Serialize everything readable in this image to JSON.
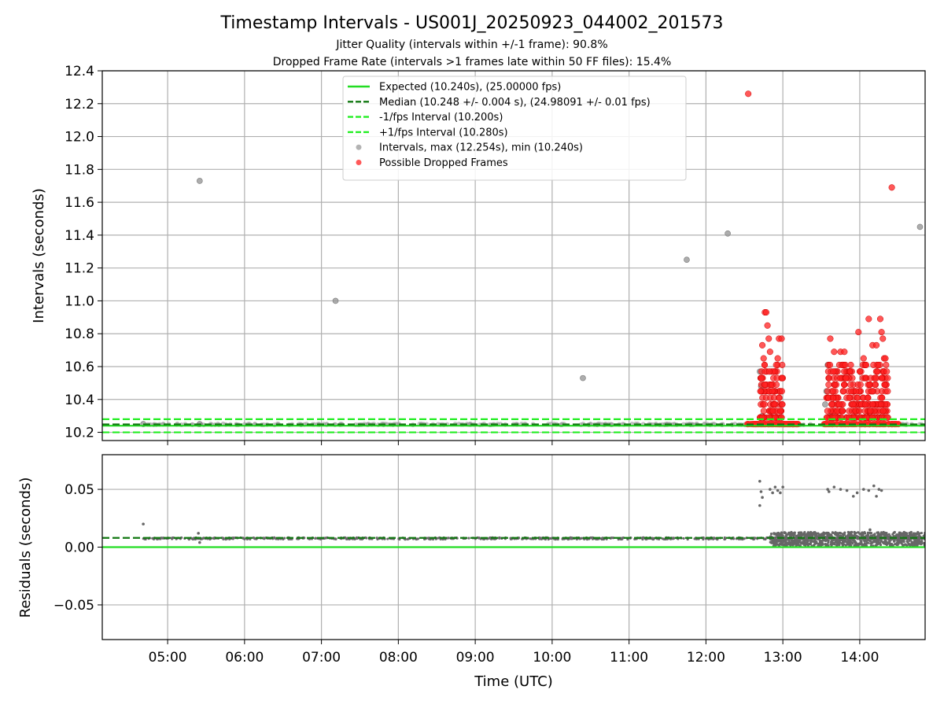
{
  "chart_data": {
    "title": "Timestamp Intervals - US001J_20250923_044002_201573",
    "subtitles": [
      "Jitter Quality (intervals within +/-1 frame): 90.8%",
      "Dropped Frame Rate (intervals >1 frames late within 50 FF files): 15.4%"
    ],
    "xlabel": "Time (UTC)",
    "x_ticks": [
      "05:00",
      "06:00",
      "07:00",
      "08:00",
      "09:00",
      "10:00",
      "11:00",
      "12:00",
      "13:00",
      "14:00"
    ],
    "x_range": [
      "04:09",
      "14:51"
    ],
    "grid": true,
    "panels": [
      {
        "type": "scatter",
        "ylabel": "Intervals (seconds)",
        "ylim": [
          10.15,
          12.4
        ],
        "y_ticks": [
          "10.2",
          "10.4",
          "10.6",
          "10.8",
          "11.0",
          "11.2",
          "11.4",
          "11.6",
          "11.8",
          "12.0",
          "12.2",
          "12.4"
        ],
        "reference_lines": [
          {
            "name": "Expected (10.240s), (25.00000 fps)",
            "y": 10.24,
            "style": "solid",
            "color": "#22dd22"
          },
          {
            "name": "Median (10.248 +/- 0.004 s), (24.98091 +/- 0.01 fps)",
            "y": 10.248,
            "style": "dashed",
            "color": "#117711"
          },
          {
            "name": "-1/fps Interval (10.200s)",
            "y": 10.2,
            "style": "dashed",
            "color": "#22ee22"
          },
          {
            "name": "+1/fps Interval (10.280s)",
            "y": 10.28,
            "style": "dashed",
            "color": "#22ee22"
          }
        ],
        "series": [
          {
            "name": "Intervals, max (12.254s), min (10.240s)",
            "color": "#999999",
            "points": [
              [
                "05:25",
                11.73
              ],
              [
                "07:11",
                11.0
              ],
              [
                "10:24",
                10.53
              ],
              [
                "11:45",
                11.25
              ],
              [
                "12:17",
                11.41
              ],
              [
                "14:47",
                11.45
              ],
              [
                "12:42",
                10.57
              ],
              [
                "12:43",
                10.48
              ],
              [
                "12:44",
                10.3
              ],
              [
                "13:33",
                10.37
              ],
              [
                "13:34",
                10.45
              ],
              [
                "13:35",
                10.61
              ],
              [
                "13:36",
                10.53
              ],
              [
                "13:37",
                10.3
              ],
              [
                "13:38",
                10.26
              ],
              [
                "04:41",
                10.25
              ],
              [
                "05:25",
                10.25
              ]
            ]
          },
          {
            "name": "Possible Dropped Frames",
            "color": "#ff2020",
            "points": [
              [
                "12:33",
                12.26
              ],
              [
                "14:25",
                11.69
              ],
              [
                "13:59",
                10.81
              ],
              [
                "12:46",
                10.93
              ],
              [
                "12:47",
                10.93
              ],
              [
                "12:48",
                10.85
              ],
              [
                "12:49",
                10.77
              ],
              [
                "12:50",
                10.69
              ],
              [
                "12:57",
                10.77
              ],
              [
                "12:59",
                10.77
              ],
              [
                "12:56",
                10.65
              ],
              [
                "12:44",
                10.73
              ],
              [
                "12:45",
                10.65
              ],
              [
                "13:37",
                10.77
              ],
              [
                "13:40",
                10.69
              ],
              [
                "13:45",
                10.69
              ],
              [
                "13:48",
                10.69
              ],
              [
                "13:53",
                10.61
              ],
              [
                "14:07",
                10.89
              ],
              [
                "14:16",
                10.89
              ],
              [
                "14:10",
                10.73
              ],
              [
                "14:13",
                10.73
              ],
              [
                "14:17",
                10.81
              ],
              [
                "14:18",
                10.77
              ],
              [
                "14:19",
                10.65
              ],
              [
                "14:20",
                10.65
              ],
              [
                "14:03",
                10.65
              ],
              [
                "14:05",
                10.61
              ]
            ],
            "clusters": [
              {
                "x_range": [
                  "12:42",
                  "13:00"
                ],
                "y_range": [
                  10.24,
                  10.61
                ]
              },
              {
                "x_range": [
                  "13:34",
                  "14:22"
                ],
                "y_range": [
                  10.24,
                  10.61
                ]
              }
            ],
            "baseline_bands": [
              {
                "x_range": [
                  "12:32",
                  "13:12"
                ],
                "y": 10.25
              },
              {
                "x_range": [
                  "13:32",
                  "14:32"
                ],
                "y": 10.25
              }
            ]
          }
        ]
      },
      {
        "type": "scatter",
        "ylabel": "Residuals (seconds)",
        "ylim": [
          -0.08,
          0.08
        ],
        "y_ticks": [
          "0.05",
          "0.00",
          "−0.05"
        ],
        "reference_lines": [
          {
            "y": 0.0,
            "style": "solid",
            "color": "#22dd22"
          },
          {
            "y": 0.008,
            "style": "dashed",
            "color": "#117711"
          }
        ],
        "series": [
          {
            "color": "#666666",
            "points": [
              [
                "04:41",
                0.02
              ],
              [
                "05:24",
                0.012
              ],
              [
                "05:25",
                0.004
              ],
              [
                "12:42",
                0.057
              ],
              [
                "12:43",
                0.048
              ],
              [
                "12:42",
                0.036
              ],
              [
                "12:44",
                0.043
              ],
              [
                "12:50",
                0.05
              ],
              [
                "12:52",
                0.047
              ],
              [
                "12:54",
                0.052
              ],
              [
                "12:56",
                0.049
              ],
              [
                "12:58",
                0.047
              ],
              [
                "13:00",
                0.052
              ],
              [
                "13:35",
                0.05
              ],
              [
                "13:36",
                0.048
              ],
              [
                "13:40",
                0.052
              ],
              [
                "13:45",
                0.05
              ],
              [
                "13:50",
                0.049
              ],
              [
                "13:55",
                0.044
              ],
              [
                "13:58",
                0.047
              ],
              [
                "14:03",
                0.05
              ],
              [
                "14:07",
                0.049
              ],
              [
                "14:11",
                0.053
              ],
              [
                "14:13",
                0.044
              ],
              [
                "14:15",
                0.05
              ],
              [
                "14:17",
                0.049
              ],
              [
                "14:08",
                0.015
              ],
              [
                "13:43",
                0.003
              ],
              [
                "14:20",
                0.003
              ]
            ],
            "band": {
              "x_range": [
                "04:41",
                "14:51"
              ],
              "y": 0.0075
            },
            "dense_ranges": [
              {
                "x_range": [
                  "12:50",
                  "14:51"
                ],
                "y_range": [
                  0.001,
                  0.013
                ]
              }
            ]
          }
        ]
      }
    ],
    "legend": {
      "placement": "top-center"
    }
  }
}
